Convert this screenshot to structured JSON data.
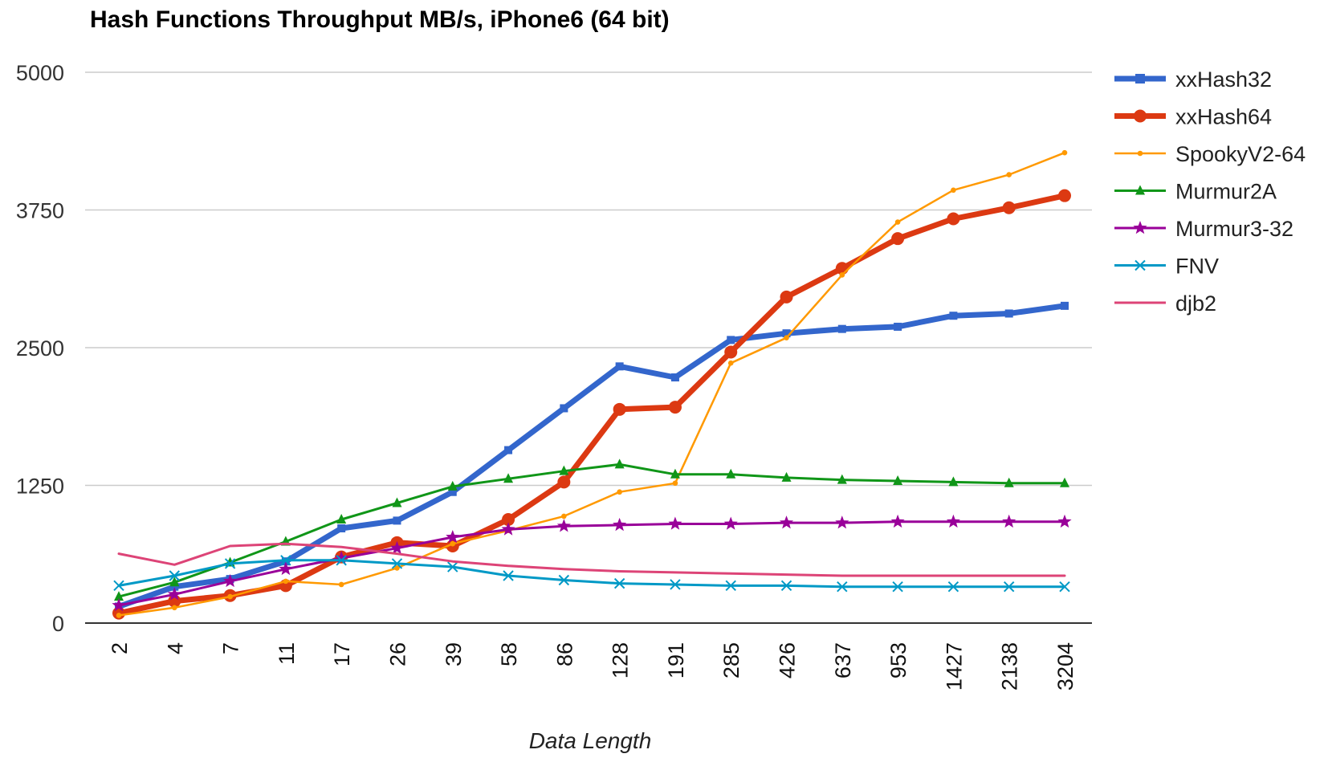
{
  "chart_data": {
    "type": "line",
    "title": "Hash Functions Throughput MB/s, iPhone6 (64 bit)",
    "xlabel": "Data Length",
    "ylabel": "",
    "categories": [
      "2",
      "4",
      "7",
      "11",
      "17",
      "26",
      "39",
      "58",
      "86",
      "128",
      "191",
      "285",
      "426",
      "637",
      "953",
      "1427",
      "2138",
      "3204"
    ],
    "y_ticks": [
      "0",
      "1250",
      "2500",
      "3750",
      "5000"
    ],
    "ylim": [
      0,
      5000
    ],
    "grid": true,
    "legend_position": "right",
    "series": [
      {
        "name": "xxHash32",
        "color": "#3366cc",
        "marker": "square",
        "width": 7,
        "values": [
          150,
          330,
          400,
          560,
          860,
          930,
          1190,
          1570,
          1950,
          2330,
          2230,
          2570,
          2630,
          2670,
          2690,
          2790,
          2810,
          2880
        ]
      },
      {
        "name": "xxHash64",
        "color": "#dc3912",
        "marker": "circle",
        "width": 7,
        "values": [
          90,
          200,
          250,
          340,
          600,
          730,
          700,
          940,
          1280,
          1940,
          1960,
          2460,
          2960,
          3220,
          3490,
          3670,
          3770,
          3880
        ]
      },
      {
        "name": "SpookyV2-64",
        "color": "#ff9900",
        "marker": "dot",
        "width": 2.5,
        "values": [
          70,
          140,
          240,
          380,
          350,
          500,
          720,
          840,
          970,
          1190,
          1270,
          2360,
          2590,
          3160,
          3640,
          3930,
          4070,
          4270
        ]
      },
      {
        "name": "Murmur2A",
        "color": "#109618",
        "marker": "triangle",
        "width": 3,
        "values": [
          240,
          370,
          550,
          740,
          940,
          1090,
          1240,
          1310,
          1380,
          1440,
          1350,
          1350,
          1320,
          1300,
          1290,
          1280,
          1270,
          1270
        ]
      },
      {
        "name": "Murmur3-32",
        "color": "#990099",
        "marker": "star",
        "width": 3,
        "values": [
          160,
          260,
          380,
          490,
          590,
          680,
          780,
          850,
          880,
          890,
          900,
          900,
          910,
          910,
          920,
          920,
          920,
          920
        ]
      },
      {
        "name": "FNV",
        "color": "#0099c6",
        "marker": "x",
        "width": 3,
        "values": [
          340,
          430,
          540,
          570,
          570,
          540,
          510,
          430,
          390,
          360,
          350,
          340,
          340,
          330,
          330,
          330,
          330,
          330
        ]
      },
      {
        "name": "djb2",
        "color": "#dd4477",
        "marker": "none",
        "width": 3,
        "values": [
          630,
          530,
          700,
          720,
          690,
          630,
          560,
          520,
          490,
          470,
          460,
          450,
          440,
          430,
          430,
          430,
          430,
          430
        ]
      }
    ]
  }
}
